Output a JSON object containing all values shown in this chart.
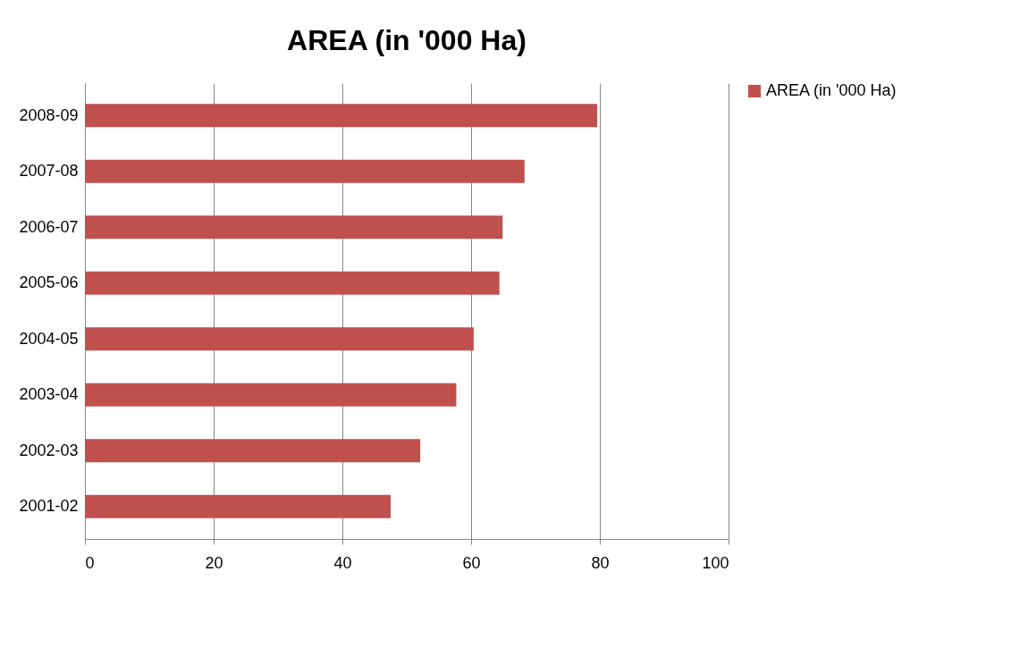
{
  "chart_data": {
    "type": "bar",
    "orientation": "horizontal",
    "title": "AREA (in '000 Ha)",
    "categories": [
      "2008-09",
      "2007-08",
      "2006-07",
      "2005-06",
      "2004-05",
      "2003-04",
      "2002-03",
      "2001-02"
    ],
    "series": [
      {
        "name": "AREA (in '000 Ha)",
        "color": "#c0504d",
        "values": [
          79.6,
          68.3,
          64.9,
          64.4,
          60.4,
          57.7,
          52.1,
          47.5
        ]
      }
    ],
    "xlim": [
      0,
      100
    ],
    "xticks": [
      0,
      20,
      40,
      60,
      80,
      100
    ],
    "grid": "x",
    "legend": "right"
  }
}
